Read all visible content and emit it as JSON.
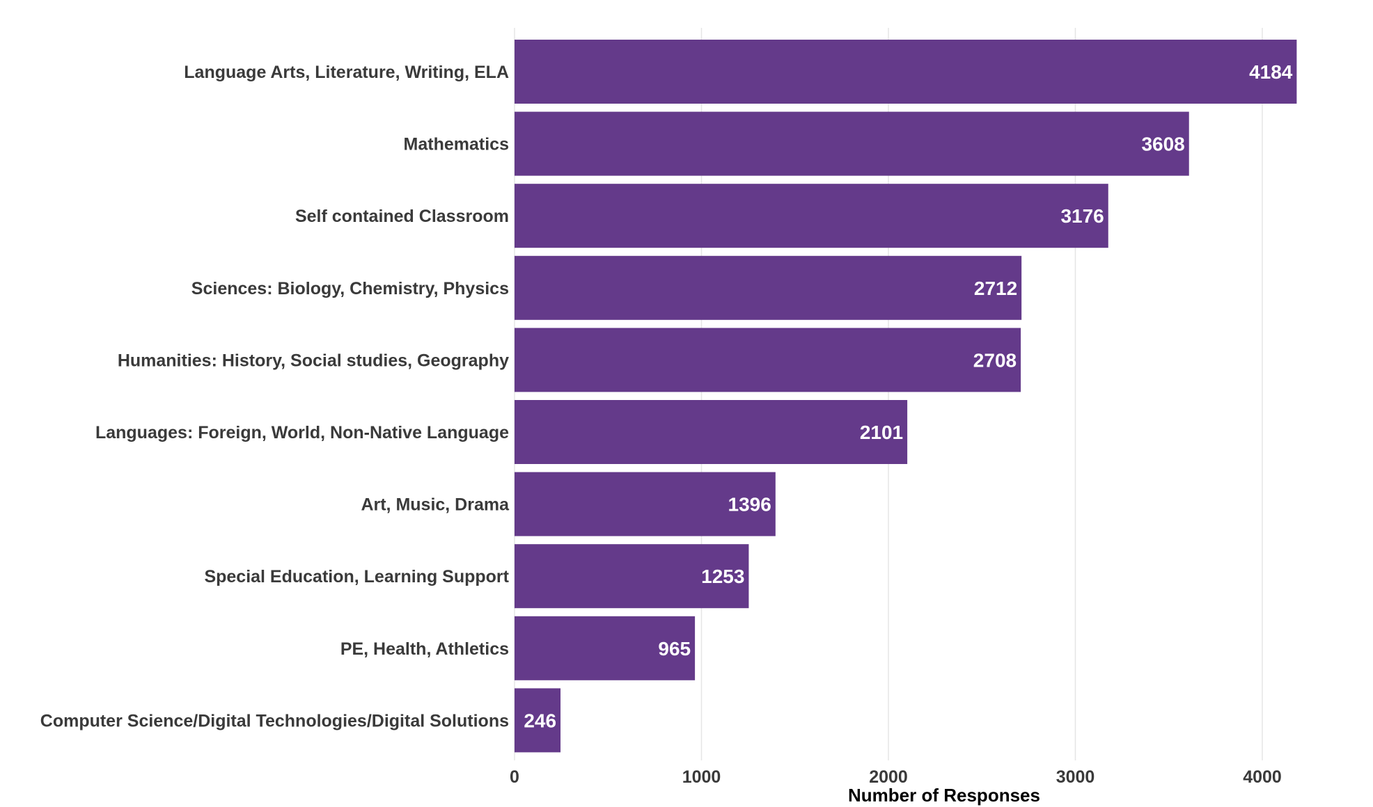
{
  "chart_data": {
    "type": "bar",
    "orientation": "horizontal",
    "categories": [
      "Language Arts, Literature, Writing, ELA",
      "Mathematics",
      "Self contained Classroom",
      "Sciences: Biology, Chemistry, Physics",
      "Humanities: History, Social studies, Geography",
      "Languages: Foreign, World, Non-Native Language",
      "Art, Music, Drama",
      "Special Education, Learning Support",
      "PE, Health, Athletics",
      "Computer Science/Digital Technologies/Digital Solutions"
    ],
    "values": [
      4184,
      3608,
      3176,
      2712,
      2708,
      2101,
      1396,
      1253,
      965,
      246
    ],
    "data_labels": [
      "4184",
      "3608",
      "3176",
      "2712",
      "2708",
      "2101",
      "1396",
      "1253",
      "965",
      "246"
    ],
    "title": "",
    "xlabel": "Number of Responses",
    "ylabel": "",
    "xlim": [
      0,
      4400
    ],
    "x_ticks": [
      "0",
      "1000",
      "2000",
      "3000",
      "4000"
    ],
    "grid": "vertical major",
    "legend": "none",
    "bar_color": "#643a8a",
    "grid_color": "#e5e5e5"
  }
}
